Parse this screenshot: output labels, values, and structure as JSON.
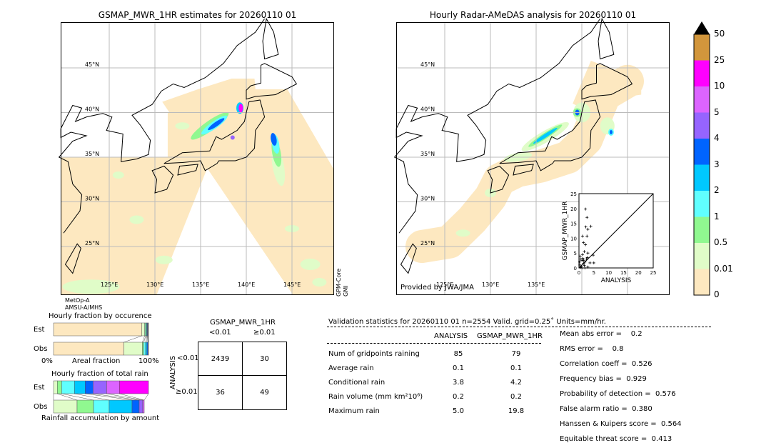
{
  "left_map": {
    "title": "GSMAP_MWR_1HR estimates for 20260110 01",
    "lat_labels": [
      "45°N",
      "40°N",
      "35°N",
      "30°N",
      "25°N"
    ],
    "lon_labels": [
      "125°E",
      "130°E",
      "135°E",
      "140°E",
      "145°E"
    ],
    "sensor_left": [
      "MetOp-A",
      "AMSU-A/MHS"
    ],
    "sensor_right": [
      "GPM-Core",
      "GMI"
    ]
  },
  "right_map": {
    "title": "Hourly Radar-AMeDAS analysis for 20260110 01",
    "lat_labels": [
      "45°N",
      "40°N",
      "35°N",
      "30°N",
      "25°N"
    ],
    "lon_labels": [
      "125°E",
      "130°E",
      "135°E"
    ],
    "credit": "Provided by JWA/JMA"
  },
  "colorbar": {
    "labels": [
      "0",
      "0.01",
      "0.5",
      "1",
      "2",
      "3",
      "4",
      "5",
      "10",
      "25",
      "50"
    ],
    "colors": [
      "#fde8c0",
      "#e0fcc8",
      "#90f890",
      "#60ffff",
      "#00c8ff",
      "#0064ff",
      "#9664ff",
      "#dc64ff",
      "#ff00ff",
      "#d2963c"
    ],
    "extend_color": "#000000"
  },
  "chart_data": [
    {
      "type": "scatter",
      "xlabel": "ANALYSIS",
      "ylabel": "GSMAP_MWR_1HR",
      "xlim": [
        0,
        25
      ],
      "ylim": [
        0,
        25
      ],
      "xticks": [
        "0",
        "5",
        "10",
        "15",
        "20",
        "25"
      ],
      "yticks": [
        "0",
        "5",
        "10",
        "15",
        "20",
        "25"
      ],
      "marker": "+",
      "diagonal": true,
      "points": [
        [
          2.2,
          19.8
        ],
        [
          2.7,
          17.0
        ],
        [
          2.3,
          13.8
        ],
        [
          3.0,
          13.0
        ],
        [
          4.0,
          14.0
        ],
        [
          1.2,
          10.7
        ],
        [
          2.7,
          10.7
        ],
        [
          1.5,
          8.5
        ],
        [
          2.2,
          7.8
        ],
        [
          1.8,
          5.5
        ],
        [
          3.0,
          5.0
        ],
        [
          4.8,
          4.3
        ],
        [
          1.2,
          4.5
        ],
        [
          0.5,
          3.0
        ],
        [
          1.0,
          2.5
        ],
        [
          2.0,
          2.0
        ],
        [
          3.7,
          1.7
        ],
        [
          5.0,
          1.7
        ],
        [
          0.3,
          1.0
        ],
        [
          0.8,
          0.5
        ],
        [
          1.5,
          1.5
        ],
        [
          2.5,
          3.0
        ],
        [
          3.0,
          0.3
        ],
        [
          1.8,
          0.8
        ],
        [
          0.5,
          0.2
        ],
        [
          1.0,
          0.0
        ],
        [
          2.0,
          0.0
        ],
        [
          0.2,
          2.0
        ],
        [
          2.8,
          3.5
        ],
        [
          1.3,
          3.2
        ],
        [
          0.4,
          4.0
        ],
        [
          1.6,
          2.6
        ]
      ]
    },
    {
      "type": "bar",
      "title": "Hourly fraction by occurence",
      "categories": [
        "Est",
        "Obs"
      ],
      "xlabel": "Areal fraction",
      "xtick_left": "0%",
      "xtick_right": "100%",
      "stacked_percent": {
        "Est": [
          93.0,
          3.0,
          1.0,
          1.0,
          0.5,
          0.5,
          0.4,
          0.3,
          0.3
        ],
        "Obs": [
          74.0,
          19.5,
          1.5,
          2.0,
          1.5,
          1.0,
          0.3,
          0.2,
          0.0
        ]
      }
    },
    {
      "type": "bar",
      "title": "Hourly fraction of total rain",
      "categories": [
        "Est",
        "Obs"
      ],
      "xlabel": "Rainfall accumulation by amount",
      "stacked_percent": {
        "Est": [
          0.0,
          4.0,
          4.5,
          13.5,
          11.3,
          8.3,
          14.3,
          13.5,
          30.6
        ],
        "Obs": [
          0.0,
          24.8,
          17.3,
          16.5,
          24.1,
          7.5,
          3.8,
          1.5,
          0.0
        ]
      }
    }
  ],
  "contingency": {
    "title": "GSMAP_MWR_1HR",
    "col_labels": [
      "<0.01",
      "≥0.01"
    ],
    "row_axis": "ANALYSIS",
    "row_labels": [
      "<0.01",
      "≥0.01"
    ],
    "cells": [
      [
        "2439",
        "30"
      ],
      [
        "36",
        "49"
      ]
    ]
  },
  "stats": {
    "header": "Validation statistics for 20260110 01  n=2554 Valid. grid=0.25˚ Units=mm/hr.",
    "col_headers": [
      "ANALYSIS",
      "GSMAP_MWR_1HR"
    ],
    "rows": [
      {
        "label": "Num of gridpoints raining",
        "a": "85",
        "b": "79"
      },
      {
        "label": "Average rain",
        "a": "0.1",
        "b": "0.1"
      },
      {
        "label": "Conditional rain",
        "a": "3.8",
        "b": "4.2"
      },
      {
        "label": "Rain volume (mm km²10⁶)",
        "a": "0.2",
        "b": "0.2"
      },
      {
        "label": "Maximum rain",
        "a": "5.0",
        "b": "19.8"
      }
    ],
    "scores": [
      "Mean abs error =    0.2",
      "RMS error =    0.8",
      "Correlation coeff =  0.526",
      "Frequency bias =  0.929",
      "Probability of detection =  0.576",
      "False alarm ratio =  0.380",
      "Hanssen & Kuipers score =  0.564",
      "Equitable threat score =  0.413"
    ]
  }
}
